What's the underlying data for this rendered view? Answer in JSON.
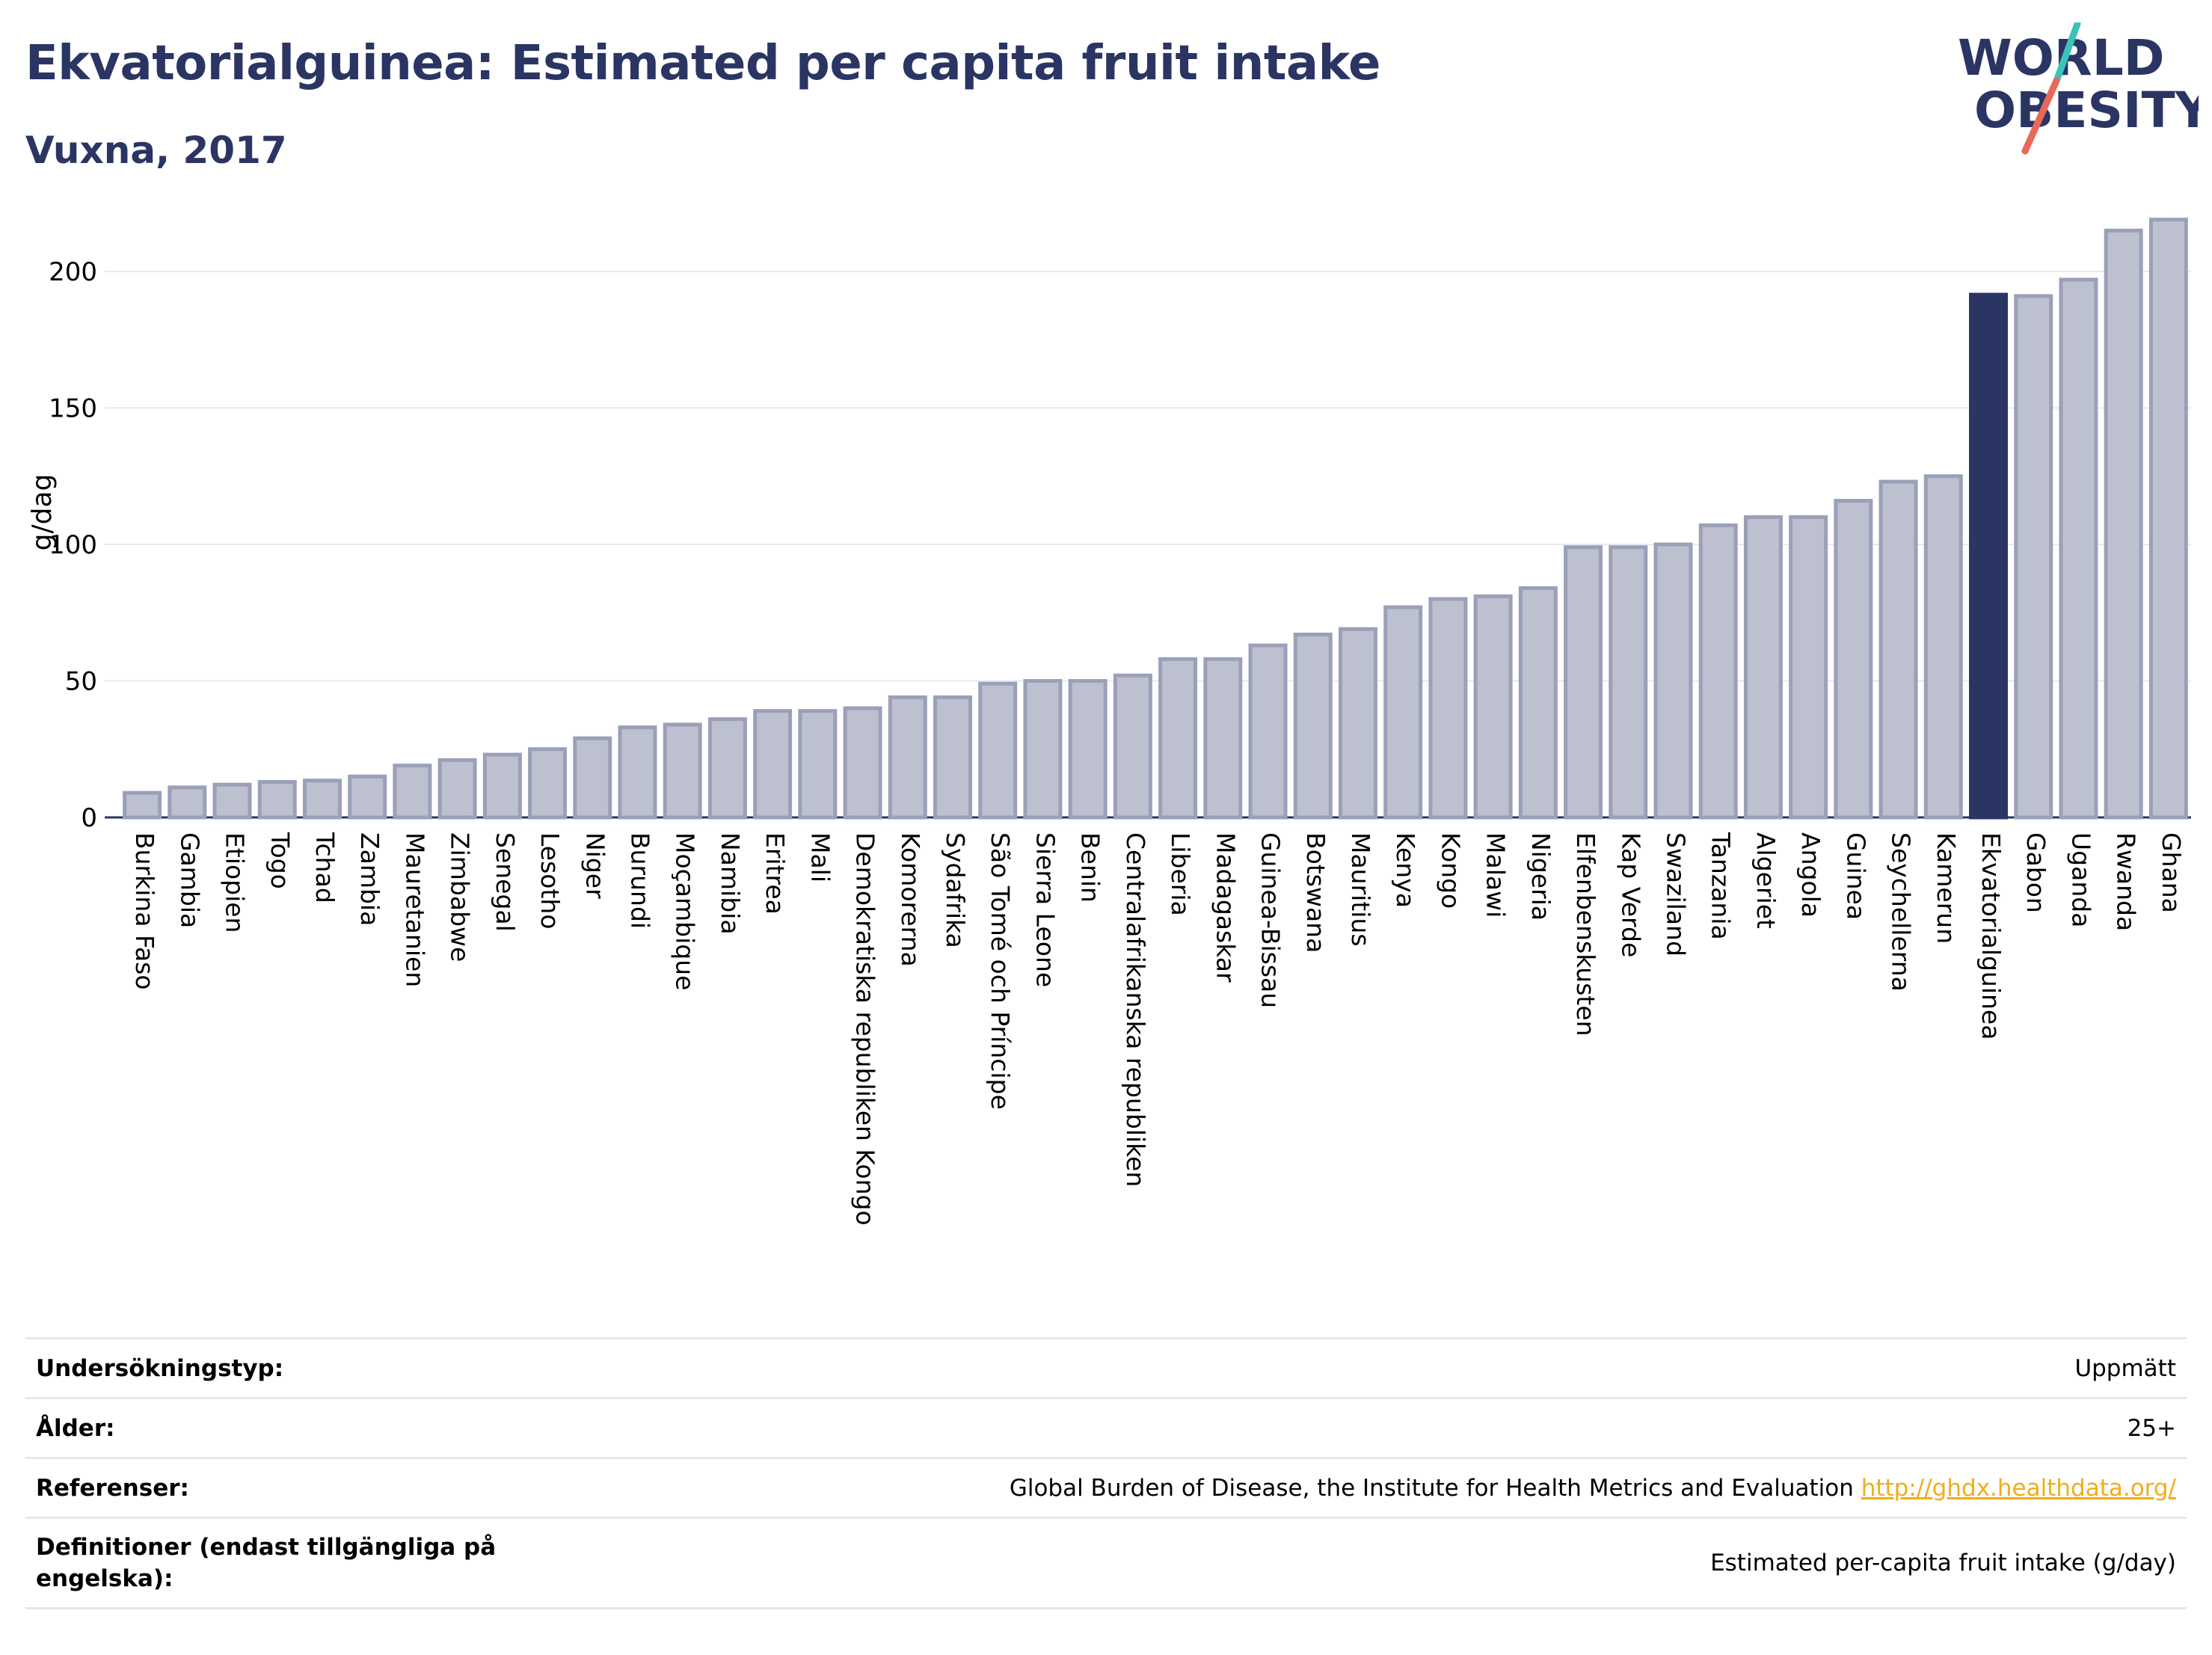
{
  "header": {
    "title": "Ekvatorialguinea: Estimated per capita fruit intake",
    "subtitle": "Vuxna, 2017",
    "logo_line1": "WORLD",
    "logo_line2": "OBESITY"
  },
  "colors": {
    "title": "#2b3563",
    "bar_default": "#bcc0cf",
    "bar_default_stroke": "#9aa0b8",
    "bar_highlight": "#2b3563",
    "grid": "#e6e8f0",
    "link": "#f0ad1b",
    "logo_teal": "#3cc3b8",
    "logo_red": "#e8685a"
  },
  "chart_data": {
    "type": "bar",
    "ylabel": "g/dag",
    "ylim": [
      0,
      220
    ],
    "yticks": [
      0,
      50,
      100,
      150,
      200
    ],
    "grid": true,
    "highlight": "Ekvatorialguinea",
    "categories": [
      "Burkina Faso",
      "Gambia",
      "Etiopien",
      "Togo",
      "Tchad",
      "Zambia",
      "Mauretanien",
      "Zimbabwe",
      "Senegal",
      "Lesotho",
      "Niger",
      "Burundi",
      "Moçambique",
      "Namibia",
      "Eritrea",
      "Mali",
      "Demokratiska republiken Kongo",
      "Komorerna",
      "Sydafrika",
      "São Tomé och Príncipe",
      "Sierra Leone",
      "Benin",
      "Centralafrikanska republiken",
      "Liberia",
      "Madagaskar",
      "Guinea-Bissau",
      "Botswana",
      "Mauritius",
      "Kenya",
      "Kongo",
      "Malawi",
      "Nigeria",
      "Elfenbenskusten",
      "Kap Verde",
      "Swaziland",
      "Tanzania",
      "Algeriet",
      "Angola",
      "Guinea",
      "Seychellerna",
      "Kamerun",
      "Ekvatorialguinea",
      "Gabon",
      "Uganda",
      "Rwanda",
      "Ghana"
    ],
    "values": [
      9,
      11,
      12,
      13,
      13.5,
      15,
      19,
      21,
      23,
      25,
      29,
      33,
      34,
      36,
      39,
      39,
      40,
      44,
      44,
      49,
      50,
      50,
      52,
      58,
      58,
      63,
      67,
      69,
      77,
      80,
      81,
      84,
      99,
      99,
      100,
      107,
      110,
      110,
      116,
      123,
      125,
      191.5,
      191,
      197,
      215,
      219
    ]
  },
  "info": {
    "rows": [
      {
        "label": "Undersökningstyp:",
        "value": "Uppmätt"
      },
      {
        "label": "Ålder:",
        "value": "25+"
      },
      {
        "label": "Referenser:",
        "value": "Global Burden of Disease, the Institute for Health Metrics and Evaluation ",
        "link": "http://ghdx.healthdata.org/"
      },
      {
        "label": "Definitioner (endast tillgängliga på engelska):",
        "value": "Estimated per-capita fruit intake (g/day)"
      }
    ]
  }
}
